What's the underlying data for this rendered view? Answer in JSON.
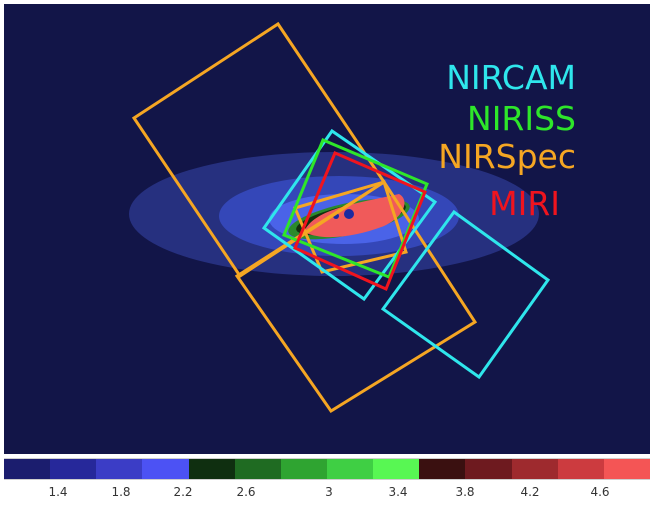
{
  "instruments": [
    {
      "name": "NIRCAM",
      "color": "#2fe6ec"
    },
    {
      "name": "NIRISS",
      "color": "#2ee62a"
    },
    {
      "name": "NIRSpec",
      "color": "#f5a623"
    },
    {
      "name": "MIRI",
      "color": "#f0141e"
    }
  ],
  "colorbar": {
    "colors": [
      "#1b1d6e",
      "#26289a",
      "#3b3dc6",
      "#4c52f4",
      "#0f2f10",
      "#1f6b22",
      "#2fa431",
      "#3fcf44",
      "#58f753",
      "#3a1010",
      "#6e1a1f",
      "#9e2a2e",
      "#cc3b3f",
      "#f45555"
    ],
    "ticks": [
      "1.4",
      "1.8",
      "2.2",
      "2.6",
      "3",
      "3.4",
      "3.8",
      "4.2",
      "4.6"
    ]
  }
}
